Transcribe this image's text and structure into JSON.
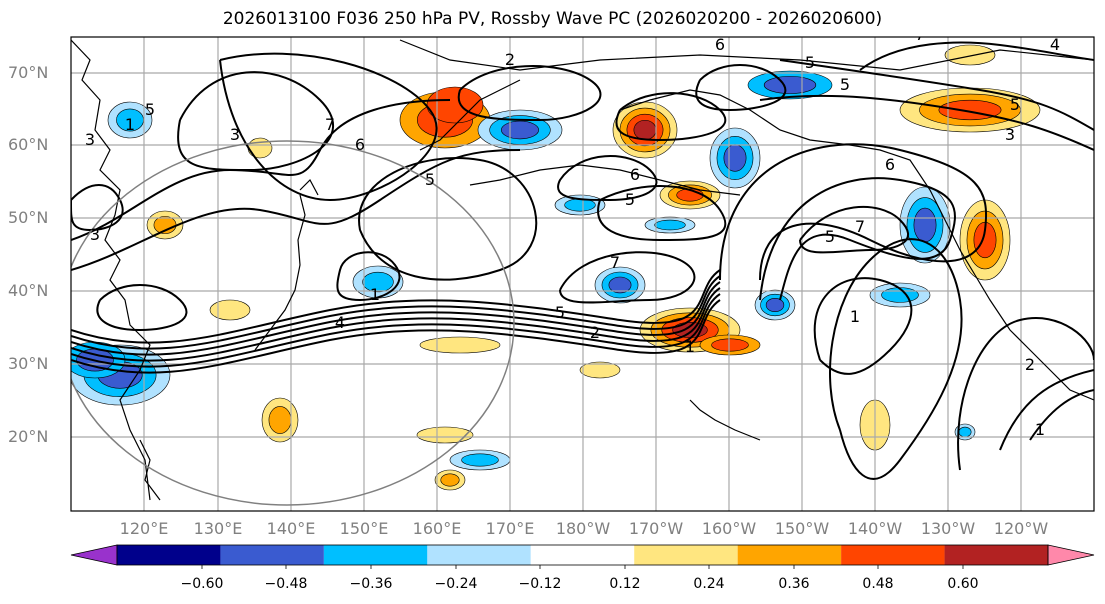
{
  "title": "2026013100 F036 250 hPa PV, Rossby Wave PC (2026020200 - 2026020600)",
  "latitude_labels": [
    "70°N",
    "60°N",
    "50°N",
    "40°N",
    "30°N",
    "20°N"
  ],
  "longitude_labels": [
    "120°E",
    "130°E",
    "140°E",
    "150°E",
    "160°E",
    "170°E",
    "180°W",
    "170°W",
    "160°W",
    "150°W",
    "140°W",
    "130°W",
    "120°W"
  ],
  "contour_labels": [
    "2",
    "6",
    "5",
    "4",
    "6",
    "5",
    "3",
    "7",
    "5",
    "3",
    "7",
    "3",
    "5",
    "6",
    "7",
    "5",
    "7",
    "5",
    "1",
    "1",
    "4",
    "5",
    "2",
    "1",
    "1",
    "2",
    "1",
    "5",
    "3",
    "6"
  ],
  "colorbar": {
    "tick_labels": [
      "−0.60",
      "−0.48",
      "−0.36",
      "−0.24",
      "−0.12",
      "0.12",
      "0.24",
      "0.36",
      "0.48",
      "0.60"
    ],
    "colors": [
      "#9932cc",
      "#00008b",
      "#3a5bd0",
      "#00bfff",
      "#b0e2ff",
      "#ffffff",
      "#ffe680",
      "#ffa500",
      "#ff4500",
      "#b22222",
      "#ff88aa"
    ]
  },
  "colors": {
    "coast": "#000000",
    "grid": "#a9a9a9",
    "contour": "#000000",
    "circle": "#808080"
  }
}
